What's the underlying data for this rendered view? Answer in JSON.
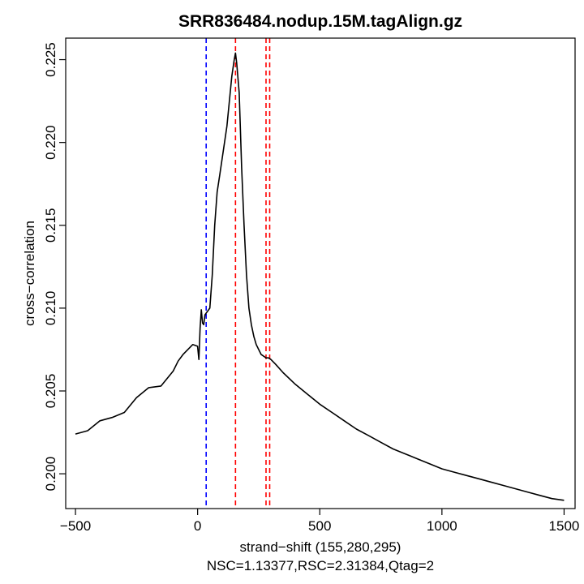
{
  "chart_data": {
    "type": "line",
    "title": "SRR836484.nodup.15M.tagAlign.gz",
    "xlabel": "strand−shift (155,280,295)",
    "subtitle": "NSC=1.13377,RSC=2.31384,Qtag=2",
    "ylabel": "cross−correlation",
    "xlim": [
      -540,
      1545
    ],
    "ylim": [
      0.1979,
      0.2263
    ],
    "xticks": [
      -500,
      0,
      500,
      1000,
      1500
    ],
    "xtick_labels": [
      "−500",
      "0",
      "500",
      "1000",
      "1500"
    ],
    "yticks": [
      0.2,
      0.205,
      0.21,
      0.215,
      0.22,
      0.225
    ],
    "ytick_labels": [
      "0.200",
      "0.205",
      "0.210",
      "0.215",
      "0.220",
      "0.225"
    ],
    "vlines": [
      {
        "x": 35,
        "color": "#0000ff",
        "style": "dashed"
      },
      {
        "x": 155,
        "color": "#ff0000",
        "style": "dashed"
      },
      {
        "x": 280,
        "color": "#ff0000",
        "style": "dashed"
      },
      {
        "x": 295,
        "color": "#ff0000",
        "style": "dashed"
      }
    ],
    "series": [
      {
        "name": "cross-correlation",
        "color": "#000000",
        "x": [
          -500,
          -450,
          -400,
          -350,
          -300,
          -250,
          -200,
          -150,
          -100,
          -80,
          -60,
          -40,
          -20,
          0,
          5,
          10,
          15,
          20,
          25,
          30,
          40,
          50,
          60,
          70,
          80,
          90,
          100,
          110,
          120,
          130,
          140,
          150,
          155,
          160,
          170,
          180,
          190,
          200,
          210,
          220,
          230,
          240,
          250,
          260,
          270,
          280,
          290,
          300,
          320,
          350,
          400,
          450,
          500,
          550,
          600,
          650,
          700,
          750,
          800,
          850,
          900,
          950,
          1000,
          1050,
          1100,
          1150,
          1200,
          1250,
          1300,
          1350,
          1400,
          1450,
          1500
        ],
        "values": [
          0.2024,
          0.2026,
          0.2032,
          0.2034,
          0.2037,
          0.2046,
          0.2052,
          0.2053,
          0.2062,
          0.2068,
          0.2072,
          0.2075,
          0.2078,
          0.2077,
          0.2069,
          0.2088,
          0.2099,
          0.2091,
          0.209,
          0.2096,
          0.2098,
          0.21,
          0.212,
          0.215,
          0.217,
          0.218,
          0.219,
          0.22,
          0.221,
          0.2225,
          0.224,
          0.225,
          0.2254,
          0.2248,
          0.223,
          0.2185,
          0.215,
          0.212,
          0.21,
          0.209,
          0.2083,
          0.2078,
          0.2075,
          0.2072,
          0.2071,
          0.207,
          0.207,
          0.2069,
          0.2066,
          0.2061,
          0.2054,
          0.2048,
          0.2042,
          0.2037,
          0.2032,
          0.2027,
          0.2023,
          0.2019,
          0.2015,
          0.2012,
          0.2009,
          0.2006,
          0.2003,
          0.2001,
          0.1999,
          0.1997,
          0.1995,
          0.1993,
          0.1991,
          0.1989,
          0.1987,
          0.1985,
          0.1984
        ]
      }
    ]
  }
}
